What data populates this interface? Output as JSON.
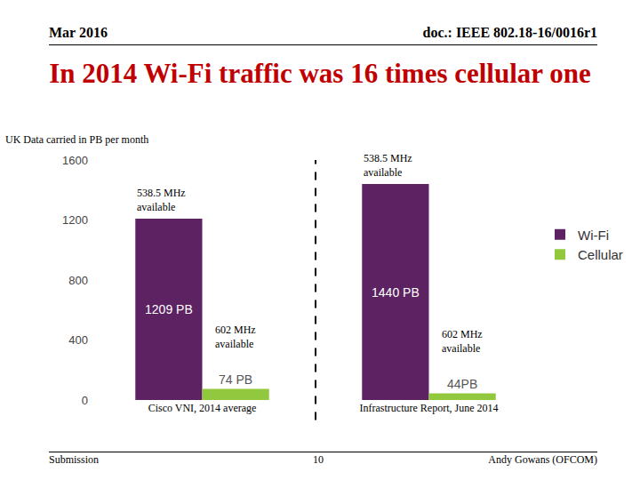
{
  "header": {
    "date": "Mar 2016",
    "doc": "doc.: IEEE 802.18-16/0016r1"
  },
  "footer": {
    "left": "Submission",
    "page": "10",
    "right": "Andy Gowans (OFCOM)"
  },
  "chart_data": {
    "type": "bar",
    "title": "In 2014 Wi-Fi traffic was 16 times cellular one",
    "y_label": "UK Data carried in PB per month",
    "categories": [
      "Cisco VNI, 2014 average",
      "Infrastructure Report, June 2014"
    ],
    "series": [
      {
        "name": "Wi-Fi",
        "color": "#5c2262",
        "values": [
          1209,
          1440
        ],
        "value_labels": [
          "1209 PB",
          "1440 PB"
        ],
        "notes": [
          [
            "538.5 MHz",
            "available"
          ],
          [
            "538.5 MHz",
            "available"
          ]
        ]
      },
      {
        "name": "Cellular",
        "color": "#92c83e",
        "values": [
          74,
          44
        ],
        "value_labels": [
          "74 PB",
          "44PB"
        ],
        "notes": [
          [
            "602 MHz",
            "available"
          ],
          [
            "602 MHz",
            "available"
          ]
        ]
      }
    ],
    "ylim": [
      0,
      1600
    ],
    "yticks": [
      0,
      400,
      800,
      1200,
      1600
    ],
    "grid": false,
    "legend": "right",
    "data_labels": true
  }
}
